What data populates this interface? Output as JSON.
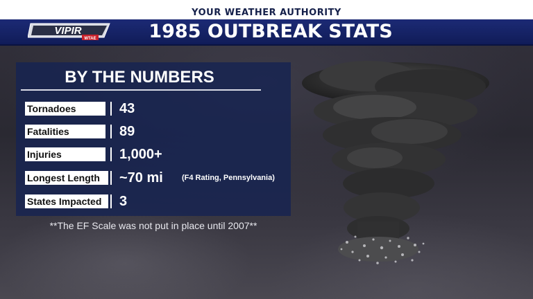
{
  "header": {
    "authority_text": "YOUR WEATHER AUTHORITY",
    "title": "1985 OUTBREAK STATS",
    "logo": {
      "main_text": "VIPIR",
      "badge_text": "WTAE"
    }
  },
  "panel": {
    "title": "BY THE NUMBERS",
    "rows": [
      {
        "label": "Tornadoes",
        "value": "43",
        "note": ""
      },
      {
        "label": "Fatalities",
        "value": "89",
        "note": ""
      },
      {
        "label": "Injuries",
        "value": "1,000+",
        "note": ""
      },
      {
        "label": "Longest Length",
        "value": "~70 mi",
        "note": "(F4 Rating, Pennsylvania)"
      },
      {
        "label": "States Impacted",
        "value": "3",
        "note": ""
      }
    ]
  },
  "footnote": "**The EF Scale was not put in place until 2007**",
  "colors": {
    "title_bar": "#1c2a75",
    "panel_bg": "#162352",
    "label_bg": "#ffffff"
  },
  "icons": {
    "background_image": "tornado-icon"
  }
}
